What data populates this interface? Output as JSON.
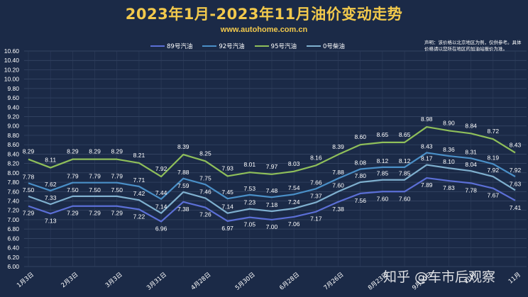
{
  "title": "2023年1月-2023年11月油价变动走势",
  "subtitle": "www.autohome.com.cn",
  "note": "声明：该价格以北京地区为例，仅供参考。具体价格请以您所在地区的加油站报价为准。",
  "watermark": "知乎 @车市后观察",
  "chart_data": {
    "type": "line",
    "ylim": [
      6.0,
      10.6
    ],
    "ytick_step": 0.2,
    "grid": true,
    "legend_position": "top-center",
    "x_tick_labels": [
      "1月3日",
      "2月3日",
      "3月3日",
      "3月31日",
      "4月28日",
      "5月30日",
      "6月28日",
      "7月26日",
      "8月23日",
      "9月20日",
      "10月",
      "11月"
    ],
    "series": [
      {
        "name": "89号汽油",
        "color": "#5b6fd6",
        "values": [
          7.29,
          7.13,
          7.29,
          7.29,
          7.29,
          7.22,
          6.96,
          7.38,
          7.26,
          6.97,
          7.05,
          7.0,
          7.06,
          7.17,
          7.38,
          7.56,
          7.6,
          7.6,
          7.89,
          7.83,
          7.78,
          7.67,
          7.41
        ]
      },
      {
        "name": "92号汽油",
        "color": "#4a8fc7",
        "values": [
          7.78,
          7.62,
          7.79,
          7.79,
          7.79,
          7.71,
          7.44,
          7.88,
          7.75,
          7.45,
          7.53,
          7.48,
          7.54,
          7.66,
          7.88,
          8.08,
          8.12,
          8.12,
          8.43,
          8.36,
          8.31,
          8.19,
          7.92
        ]
      },
      {
        "name": "95号汽油",
        "color": "#8fbf5a",
        "values": [
          8.29,
          8.11,
          8.29,
          8.29,
          8.29,
          8.21,
          7.92,
          8.39,
          8.25,
          7.93,
          8.01,
          7.97,
          8.03,
          8.16,
          8.39,
          8.6,
          8.65,
          8.65,
          8.98,
          8.9,
          8.84,
          8.72,
          8.43
        ]
      },
      {
        "name": "0号柴油",
        "color": "#7fb0cf",
        "values": [
          7.5,
          7.33,
          7.5,
          7.5,
          7.5,
          7.42,
          7.14,
          7.59,
          7.46,
          7.14,
          7.23,
          7.18,
          7.24,
          7.37,
          7.6,
          7.8,
          7.85,
          7.85,
          8.17,
          8.1,
          8.04,
          7.92,
          7.63
        ]
      }
    ]
  }
}
